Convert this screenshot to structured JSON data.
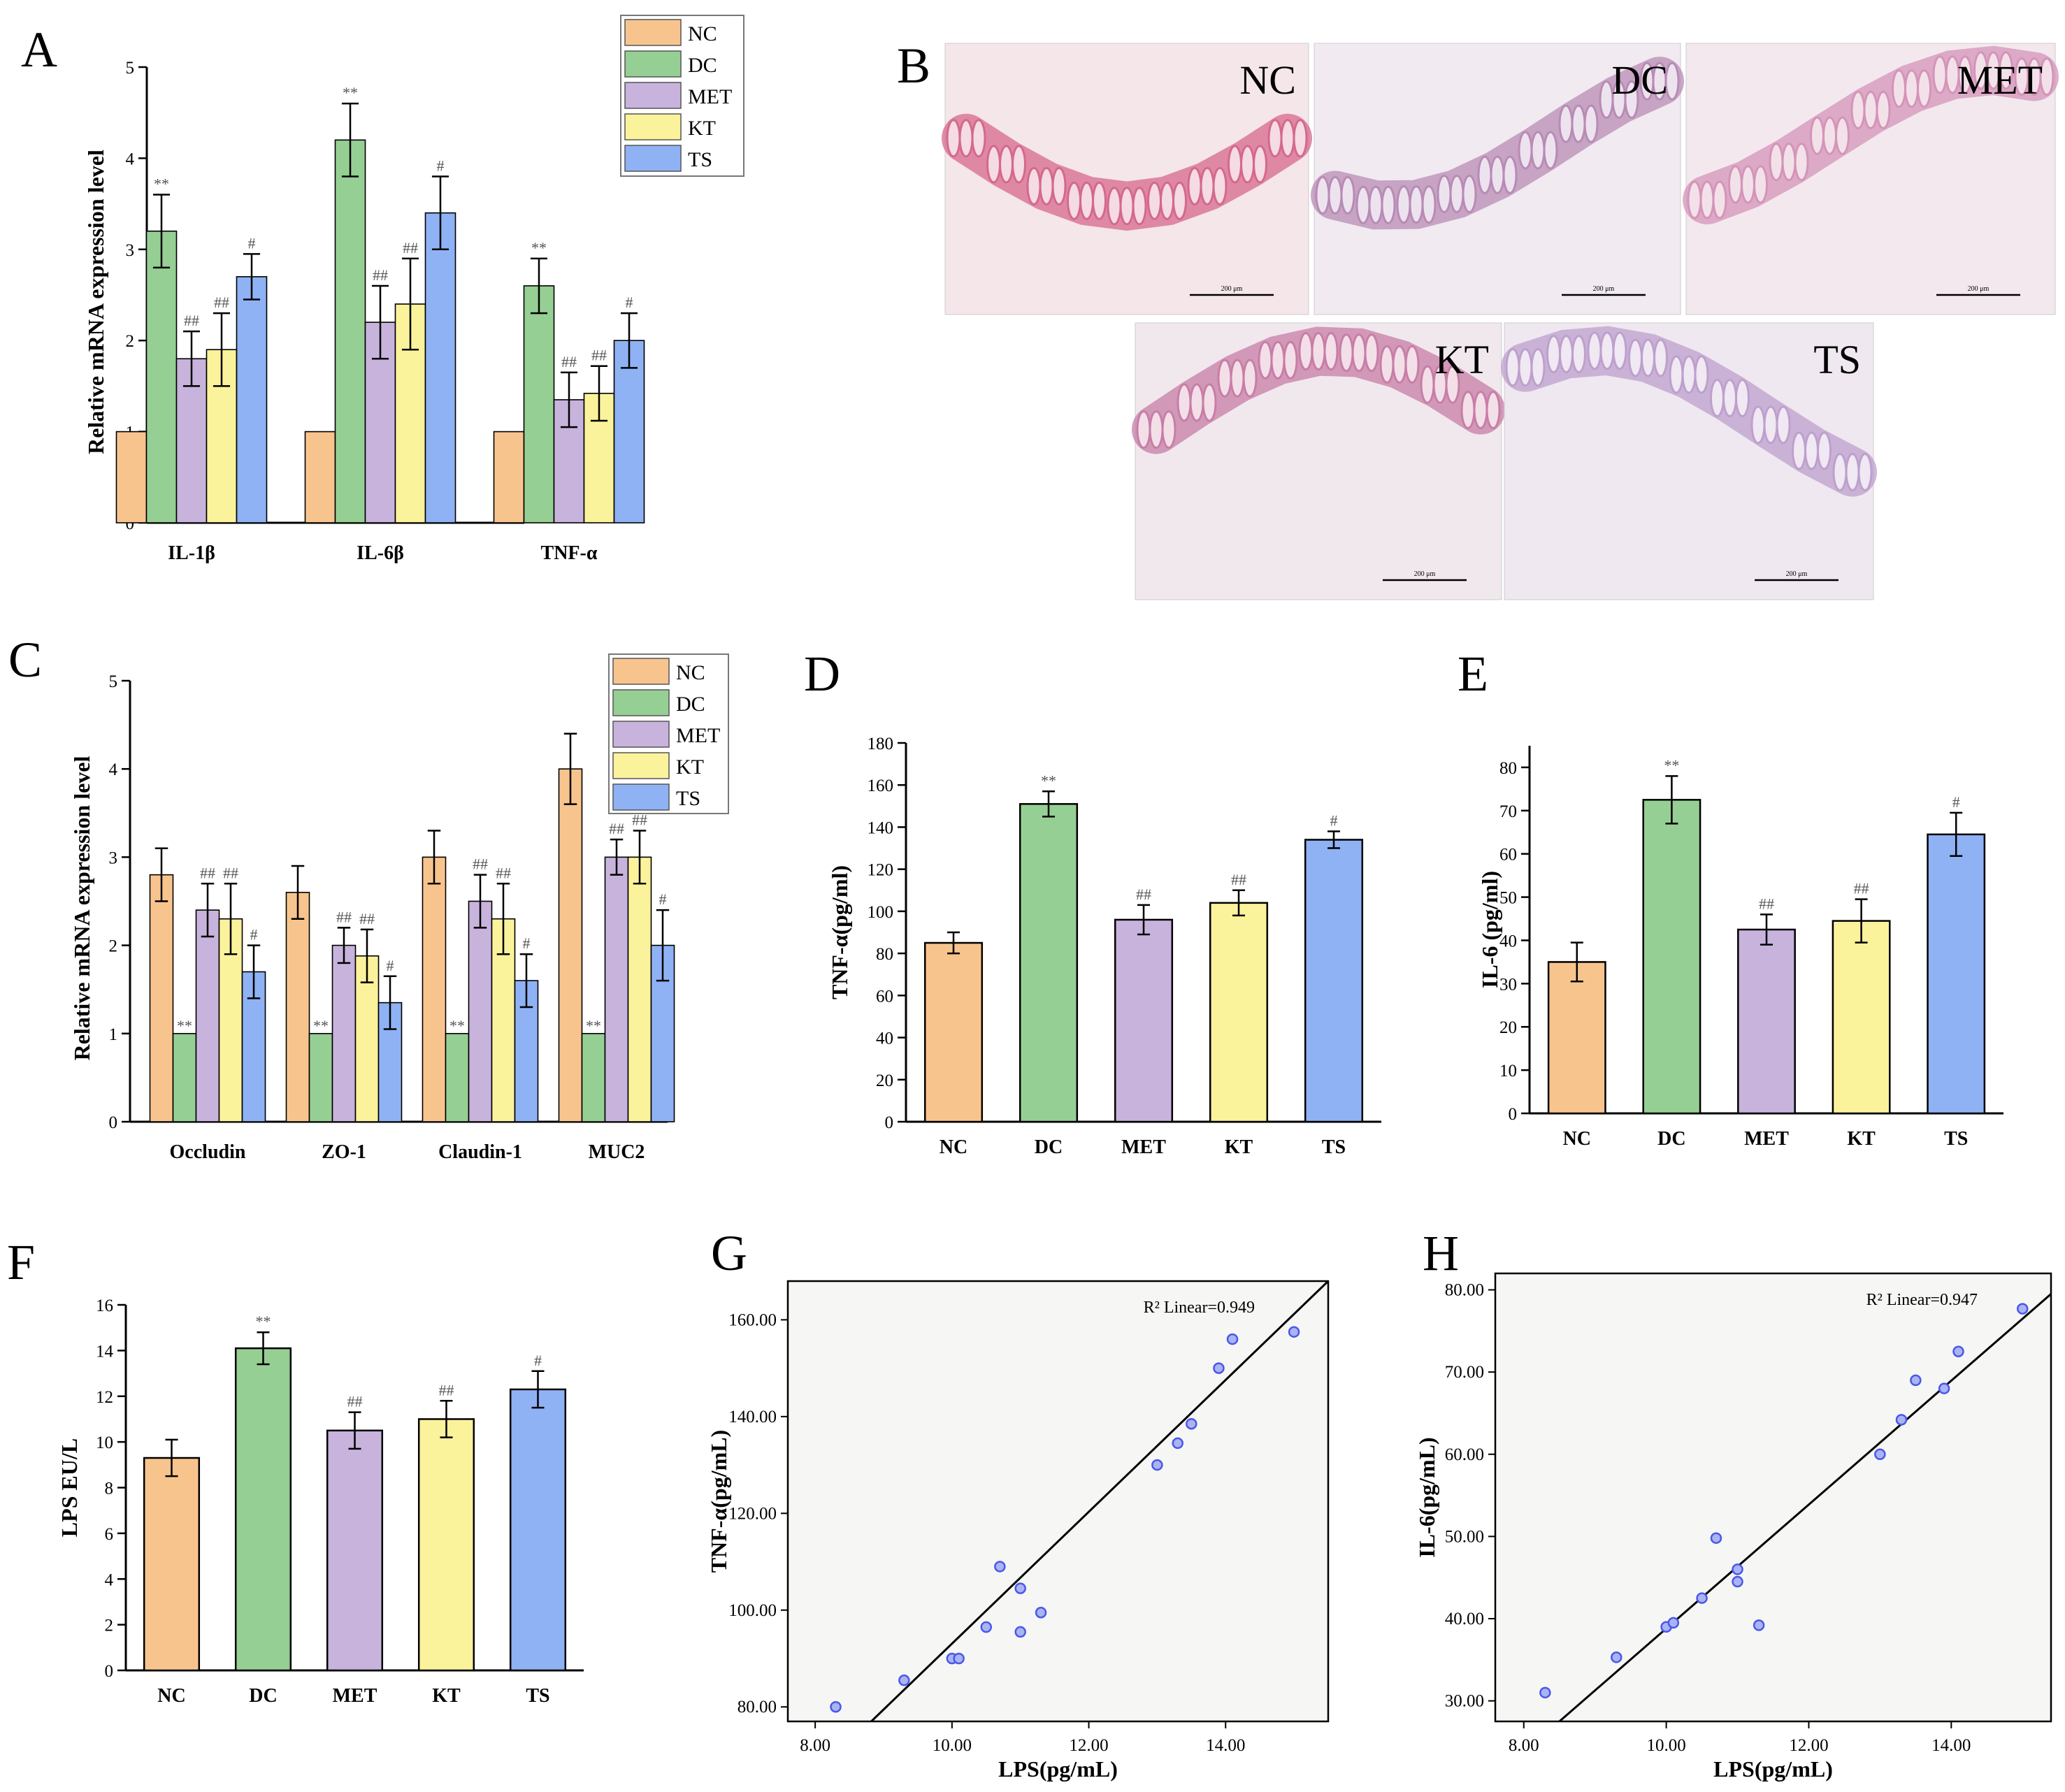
{
  "colors": {
    "NC": "#f8c48e",
    "DC": "#96cf94",
    "MET": "#c7b3dc",
    "KT": "#fbf29c",
    "TS": "#8fb2f4",
    "point": "#4a57e8",
    "stroke": "#000000"
  },
  "chart_data": [
    {
      "id": "A",
      "panel_label": "A",
      "type": "bar",
      "ylabel": "Relative mRNA expression level",
      "ylim": [
        0,
        5
      ],
      "yticks": [
        0,
        1,
        2,
        3,
        4,
        5
      ],
      "categories": [
        "IL-1β",
        "IL-6β",
        "TNF-α"
      ],
      "legend": "top-right",
      "series": [
        {
          "name": "NC",
          "values": [
            1,
            1,
            1
          ],
          "errors": [
            0,
            0,
            0
          ],
          "annotations": [
            "",
            "",
            ""
          ]
        },
        {
          "name": "DC",
          "values": [
            3.2,
            4.2,
            2.6
          ],
          "errors": [
            0.4,
            0.4,
            0.3
          ],
          "annotations": [
            "**",
            "**",
            "**"
          ]
        },
        {
          "name": "MET",
          "values": [
            1.8,
            2.2,
            1.35
          ],
          "errors": [
            0.3,
            0.4,
            0.3
          ],
          "annotations": [
            "##",
            "##",
            "##"
          ]
        },
        {
          "name": "KT",
          "values": [
            1.9,
            2.4,
            1.42
          ],
          "errors": [
            0.4,
            0.5,
            0.3
          ],
          "annotations": [
            "##",
            "##",
            "##"
          ]
        },
        {
          "name": "TS",
          "values": [
            2.7,
            3.4,
            2.0
          ],
          "errors": [
            0.25,
            0.4,
            0.3
          ],
          "annotations": [
            "#",
            "#",
            "#"
          ]
        }
      ]
    },
    {
      "id": "C",
      "panel_label": "C",
      "type": "bar",
      "ylabel": "Relative mRNA expression level",
      "ylim": [
        0,
        5
      ],
      "yticks": [
        0,
        1,
        2,
        3,
        4,
        5
      ],
      "categories": [
        "Occludin",
        "ZO-1",
        "Claudin-1",
        "MUC2"
      ],
      "legend": "top-right",
      "series": [
        {
          "name": "NC",
          "values": [
            2.8,
            2.6,
            3.0,
            4.0
          ],
          "errors": [
            0.3,
            0.3,
            0.3,
            0.4
          ],
          "annotations": [
            "",
            "",
            "",
            ""
          ]
        },
        {
          "name": "DC",
          "values": [
            1,
            1,
            1,
            1
          ],
          "errors": [
            0,
            0,
            0,
            0
          ],
          "annotations": [
            "**",
            "**",
            "**",
            "**"
          ]
        },
        {
          "name": "MET",
          "values": [
            2.4,
            2.0,
            2.5,
            3.0
          ],
          "errors": [
            0.3,
            0.2,
            0.3,
            0.2
          ],
          "annotations": [
            "##",
            "##",
            "##",
            "##"
          ]
        },
        {
          "name": "KT",
          "values": [
            2.3,
            1.88,
            2.3,
            3.0
          ],
          "errors": [
            0.4,
            0.3,
            0.4,
            0.3
          ],
          "annotations": [
            "##",
            "##",
            "##",
            "##"
          ]
        },
        {
          "name": "TS",
          "values": [
            1.7,
            1.35,
            1.6,
            2.0
          ],
          "errors": [
            0.3,
            0.3,
            0.3,
            0.4
          ],
          "annotations": [
            "#",
            "#",
            "#",
            "#"
          ]
        }
      ]
    },
    {
      "id": "D",
      "panel_label": "D",
      "type": "bar",
      "ylabel": "TNF-α(pg/ml)",
      "ylim": [
        0,
        180
      ],
      "yticks": [
        0,
        20,
        40,
        60,
        80,
        100,
        120,
        140,
        160,
        180
      ],
      "categories": [
        "NC",
        "DC",
        "MET",
        "KT",
        "TS"
      ],
      "values": [
        85,
        151,
        96,
        104,
        134
      ],
      "errors": [
        5,
        6,
        7,
        6,
        4
      ],
      "annotations": [
        "",
        "**",
        "##",
        "##",
        "#"
      ]
    },
    {
      "id": "E",
      "panel_label": "E",
      "type": "bar",
      "ylabel": "IL-6 (pg/ml)",
      "ylim": [
        0,
        85
      ],
      "yticks": [
        0,
        10,
        20,
        30,
        40,
        50,
        60,
        70,
        80
      ],
      "categories": [
        "NC",
        "DC",
        "MET",
        "KT",
        "TS"
      ],
      "values": [
        35,
        72.5,
        42.5,
        44.5,
        64.5
      ],
      "errors": [
        4.5,
        5.5,
        3.5,
        5,
        5
      ],
      "annotations": [
        "",
        "**",
        "##",
        "##",
        "#"
      ]
    },
    {
      "id": "F",
      "panel_label": "F",
      "type": "bar",
      "ylabel": "LPS EU/L",
      "ylim": [
        0,
        16
      ],
      "yticks": [
        0,
        2,
        4,
        6,
        8,
        10,
        12,
        14,
        16
      ],
      "categories": [
        "NC",
        "DC",
        "MET",
        "KT",
        "TS"
      ],
      "values": [
        9.3,
        14.1,
        10.5,
        11.0,
        12.3
      ],
      "errors": [
        0.8,
        0.7,
        0.8,
        0.8,
        0.8
      ],
      "annotations": [
        "",
        "**",
        "##",
        "##",
        "#"
      ]
    },
    {
      "id": "G",
      "panel_label": "G",
      "type": "scatter",
      "xlabel": "LPS(pg/mL)",
      "ylabel": "TNF-α(pg/mL)",
      "xlim": [
        7.6,
        15.5
      ],
      "ylim": [
        77,
        168
      ],
      "xticks": [
        "8.00",
        "10.00",
        "12.00",
        "14.00"
      ],
      "yticks": [
        "80.00",
        "100.00",
        "120.00",
        "140.00",
        "160.00"
      ],
      "r2_label": "R² Linear=0.949",
      "x": [
        8.3,
        9.3,
        10.0,
        10.1,
        10.5,
        10.7,
        11.0,
        11.0,
        11.3,
        13.0,
        13.3,
        13.5,
        13.9,
        14.1,
        15.0
      ],
      "y": [
        80,
        85.5,
        90,
        90,
        96.5,
        109,
        104.5,
        95.5,
        99.5,
        130,
        134.5,
        138.5,
        150,
        156,
        157.5
      ],
      "fit_line": [
        [
          8.82,
          77
        ],
        [
          15.5,
          168
        ]
      ]
    },
    {
      "id": "H",
      "panel_label": "H",
      "type": "scatter",
      "xlabel": "LPS(pg/mL)",
      "ylabel": "IL-6(pg/mL)",
      "xlim": [
        7.6,
        15.4
      ],
      "ylim": [
        27.5,
        82
      ],
      "xticks": [
        "8.00",
        "10.00",
        "12.00",
        "14.00"
      ],
      "yticks": [
        "30.00",
        "40.00",
        "50.00",
        "60.00",
        "70.00",
        "80.00"
      ],
      "r2_label": "R² Linear=0.947",
      "x": [
        8.3,
        9.3,
        10.0,
        10.1,
        10.5,
        10.7,
        11.0,
        11.0,
        11.3,
        13.0,
        13.3,
        13.5,
        13.9,
        14.1,
        15.0
      ],
      "y": [
        31,
        35.3,
        39,
        39.5,
        42.5,
        49.8,
        46,
        44.5,
        39.2,
        60,
        64.2,
        69,
        68,
        72.5,
        77.7
      ],
      "fit_line": [
        [
          8.5,
          27.5
        ],
        [
          15.4,
          79.5
        ]
      ]
    }
  ],
  "histology": {
    "panel_label": "B",
    "images": [
      {
        "label": "NC",
        "scale_text": "200 μm"
      },
      {
        "label": "DC",
        "scale_text": "200 μm"
      },
      {
        "label": "MET",
        "scale_text": "200 μm"
      },
      {
        "label": "KT",
        "scale_text": "200 μm"
      },
      {
        "label": "TS",
        "scale_text": "200 μm"
      }
    ]
  }
}
